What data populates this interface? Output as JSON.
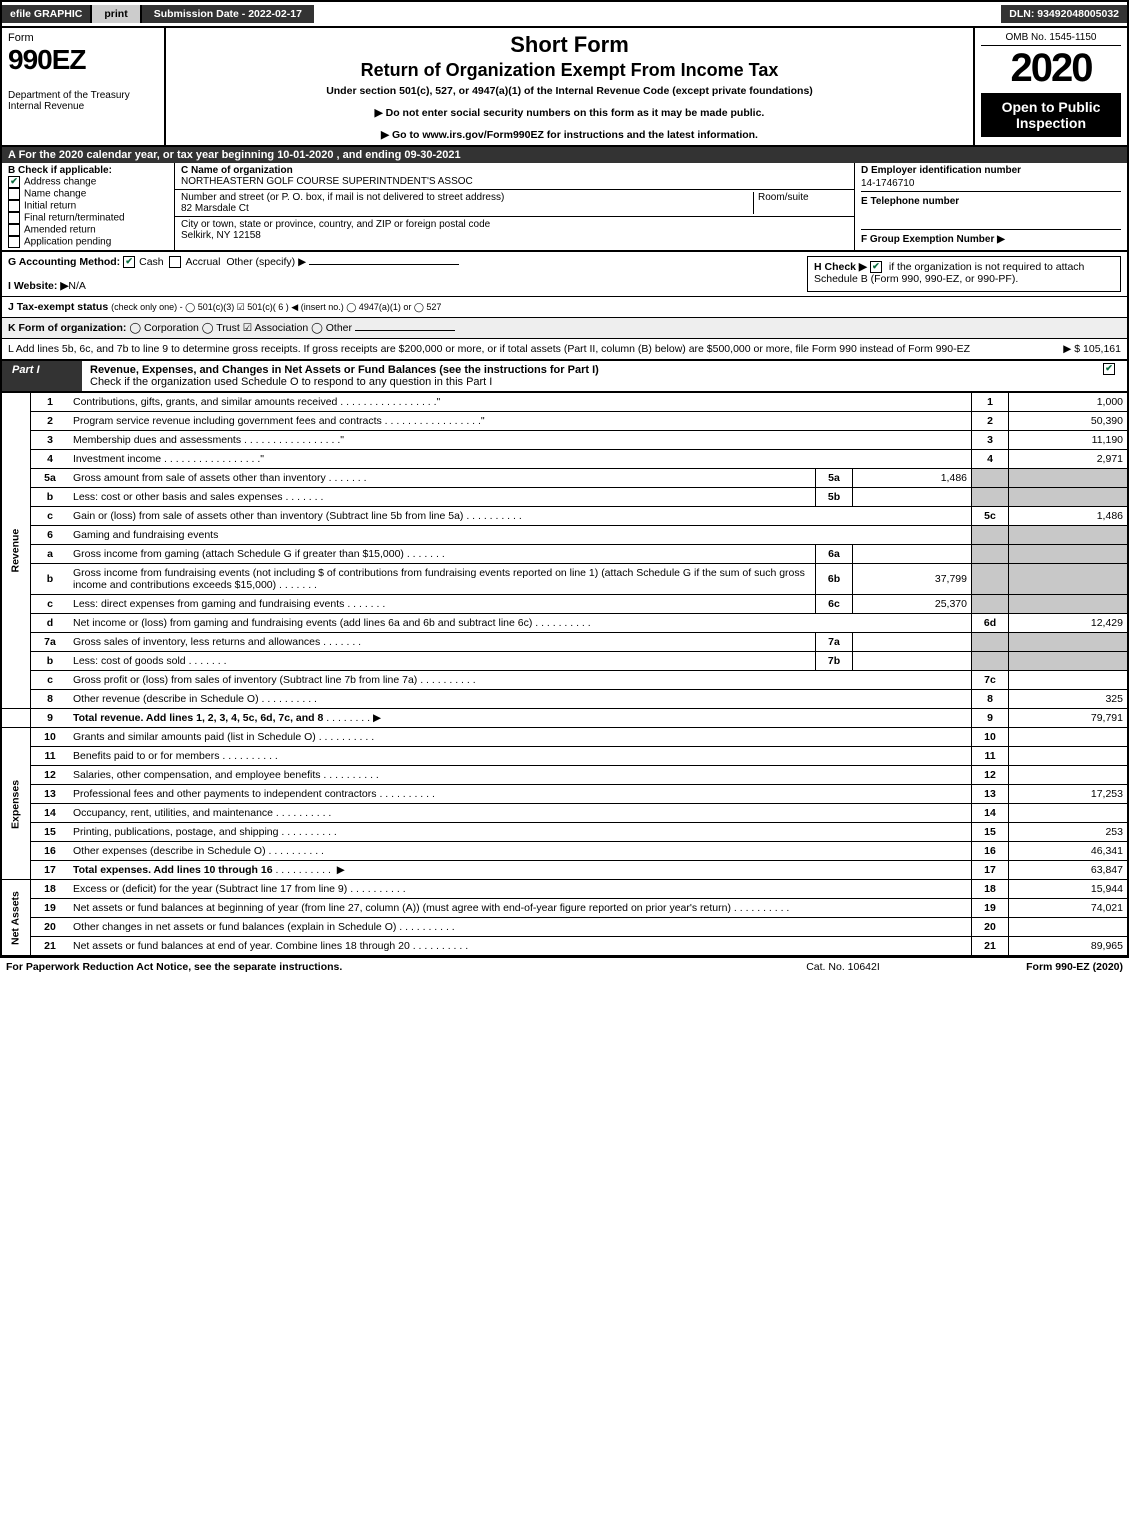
{
  "topbar": {
    "efile": "efile GRAPHIC",
    "print": "print",
    "subdate": "Submission Date - 2022-02-17",
    "dln": "DLN: 93492048005032"
  },
  "header": {
    "form": "Form",
    "num": "990EZ",
    "dept": "Department of the Treasury\nInternal Revenue",
    "title1": "Short Form",
    "title2": "Return of Organization Exempt From Income Tax",
    "subtitle": "Under section 501(c), 527, or 4947(a)(1) of the Internal Revenue Code (except private foundations)",
    "note1": "▶ Do not enter social security numbers on this form as it may be made public.",
    "note2": "▶ Go to www.irs.gov/Form990EZ for instructions and the latest information.",
    "omb": "OMB No. 1545-1150",
    "year": "2020",
    "open": "Open to Public Inspection"
  },
  "rowA": "A For the 2020 calendar year, or tax year beginning 10-01-2020 , and ending 09-30-2021",
  "B": {
    "label": "B  Check if applicable:",
    "items": [
      "Address change",
      "Name change",
      "Initial return",
      "Final return/terminated",
      "Amended return",
      "Application pending"
    ],
    "checked": [
      true,
      false,
      false,
      false,
      false,
      false
    ]
  },
  "C": {
    "label": "C Name of organization",
    "name": "NORTHEASTERN GOLF COURSE SUPERINTNDENT'S ASSOC",
    "addrlabel": "Number and street (or P. O. box, if mail is not delivered to street address)",
    "addr": "82 Marsdale Ct",
    "room": "Room/suite",
    "citylabel": "City or town, state or province, country, and ZIP or foreign postal code",
    "city": "Selkirk, NY  12158"
  },
  "D": {
    "label": "D Employer identification number",
    "ein": "14-1746710",
    "tel_label": "E Telephone number",
    "f_label": "F Group Exemption Number   ▶"
  },
  "G": {
    "label": "G Accounting Method:",
    "cash": "Cash",
    "accrual": "Accrual",
    "other": "Other (specify) ▶"
  },
  "H": {
    "label": "H  Check ▶",
    "text": "if the organization is not required to attach Schedule B (Form 990, 990-EZ, or 990-PF)."
  },
  "I": {
    "label": "I Website: ▶",
    "val": "N/A"
  },
  "J": {
    "label": "J Tax-exempt status",
    "text": "(check only one) - ◯ 501(c)(3)  ☑ 501(c)( 6 ) ◀ (insert no.)  ◯ 4947(a)(1) or  ◯ 527"
  },
  "K": {
    "label": "K Form of organization:",
    "text": "◯ Corporation  ◯ Trust  ☑ Association  ◯ Other"
  },
  "L": {
    "text": "L Add lines 5b, 6c, and 7b to line 9 to determine gross receipts. If gross receipts are $200,000 or more, or if total assets (Part II, column (B) below) are $500,000 or more, file Form 990 instead of Form 990-EZ",
    "amt": "▶ $ 105,161"
  },
  "partI": {
    "label": "Part I",
    "title": "Revenue, Expenses, and Changes in Net Assets or Fund Balances (see the instructions for Part I)",
    "sub": "Check if the organization used Schedule O to respond to any question in this Part I"
  },
  "sections": {
    "rev": "Revenue",
    "exp": "Expenses",
    "net": "Net Assets"
  },
  "lines": {
    "1": {
      "n": "1",
      "d": "Contributions, gifts, grants, and similar amounts received",
      "a": "1,000"
    },
    "2": {
      "n": "2",
      "d": "Program service revenue including government fees and contracts",
      "a": "50,390"
    },
    "3": {
      "n": "3",
      "d": "Membership dues and assessments",
      "a": "11,190"
    },
    "4": {
      "n": "4",
      "d": "Investment income",
      "a": "2,971"
    },
    "5a": {
      "n": "5a",
      "d": "Gross amount from sale of assets other than inventory",
      "m": "5a",
      "mv": "1,486"
    },
    "5b": {
      "n": "b",
      "d": "Less: cost or other basis and sales expenses",
      "m": "5b",
      "mv": ""
    },
    "5c": {
      "n": "c",
      "d": "Gain or (loss) from sale of assets other than inventory (Subtract line 5b from line 5a)",
      "nb": "5c",
      "a": "1,486"
    },
    "6": {
      "n": "6",
      "d": "Gaming and fundraising events"
    },
    "6a": {
      "n": "a",
      "d": "Gross income from gaming (attach Schedule G if greater than $15,000)",
      "m": "6a",
      "mv": ""
    },
    "6b": {
      "n": "b",
      "d": "Gross income from fundraising events (not including $               of contributions from fundraising events reported on line 1) (attach Schedule G if the sum of such gross income and contributions exceeds $15,000)",
      "m": "6b",
      "mv": "37,799"
    },
    "6c": {
      "n": "c",
      "d": "Less: direct expenses from gaming and fundraising events",
      "m": "6c",
      "mv": "25,370"
    },
    "6d": {
      "n": "d",
      "d": "Net income or (loss) from gaming and fundraising events (add lines 6a and 6b and subtract line 6c)",
      "nb": "6d",
      "a": "12,429"
    },
    "7a": {
      "n": "7a",
      "d": "Gross sales of inventory, less returns and allowances",
      "m": "7a",
      "mv": ""
    },
    "7b": {
      "n": "b",
      "d": "Less: cost of goods sold",
      "m": "7b",
      "mv": ""
    },
    "7c": {
      "n": "c",
      "d": "Gross profit or (loss) from sales of inventory (Subtract line 7b from line 7a)",
      "nb": "7c",
      "a": ""
    },
    "8": {
      "n": "8",
      "d": "Other revenue (describe in Schedule O)",
      "nb": "8",
      "a": "325"
    },
    "9": {
      "n": "9",
      "d": "Total revenue. Add lines 1, 2, 3, 4, 5c, 6d, 7c, and 8",
      "nb": "9",
      "a": "79,791",
      "bold": true,
      "arrow": true
    },
    "10": {
      "n": "10",
      "d": "Grants and similar amounts paid (list in Schedule O)",
      "nb": "10",
      "a": ""
    },
    "11": {
      "n": "11",
      "d": "Benefits paid to or for members",
      "nb": "11",
      "a": ""
    },
    "12": {
      "n": "12",
      "d": "Salaries, other compensation, and employee benefits",
      "nb": "12",
      "a": ""
    },
    "13": {
      "n": "13",
      "d": "Professional fees and other payments to independent contractors",
      "nb": "13",
      "a": "17,253"
    },
    "14": {
      "n": "14",
      "d": "Occupancy, rent, utilities, and maintenance",
      "nb": "14",
      "a": ""
    },
    "15": {
      "n": "15",
      "d": "Printing, publications, postage, and shipping",
      "nb": "15",
      "a": "253"
    },
    "16": {
      "n": "16",
      "d": "Other expenses (describe in Schedule O)",
      "nb": "16",
      "a": "46,341"
    },
    "17": {
      "n": "17",
      "d": "Total expenses. Add lines 10 through 16",
      "nb": "17",
      "a": "63,847",
      "bold": true,
      "arrow": true
    },
    "18": {
      "n": "18",
      "d": "Excess or (deficit) for the year (Subtract line 17 from line 9)",
      "nb": "18",
      "a": "15,944"
    },
    "19": {
      "n": "19",
      "d": "Net assets or fund balances at beginning of year (from line 27, column (A)) (must agree with end-of-year figure reported on prior year's return)",
      "nb": "19",
      "a": "74,021"
    },
    "20": {
      "n": "20",
      "d": "Other changes in net assets or fund balances (explain in Schedule O)",
      "nb": "20",
      "a": ""
    },
    "21": {
      "n": "21",
      "d": "Net assets or fund balances at end of year. Combine lines 18 through 20",
      "nb": "21",
      "a": "89,965"
    }
  },
  "footer": {
    "l": "For Paperwork Reduction Act Notice, see the separate instructions.",
    "c": "Cat. No. 10642I",
    "r": "Form 990-EZ (2020)"
  },
  "colors": {
    "darkbg": "#333333",
    "grey": "#c8c8c8",
    "check": "#0a6b3d"
  }
}
